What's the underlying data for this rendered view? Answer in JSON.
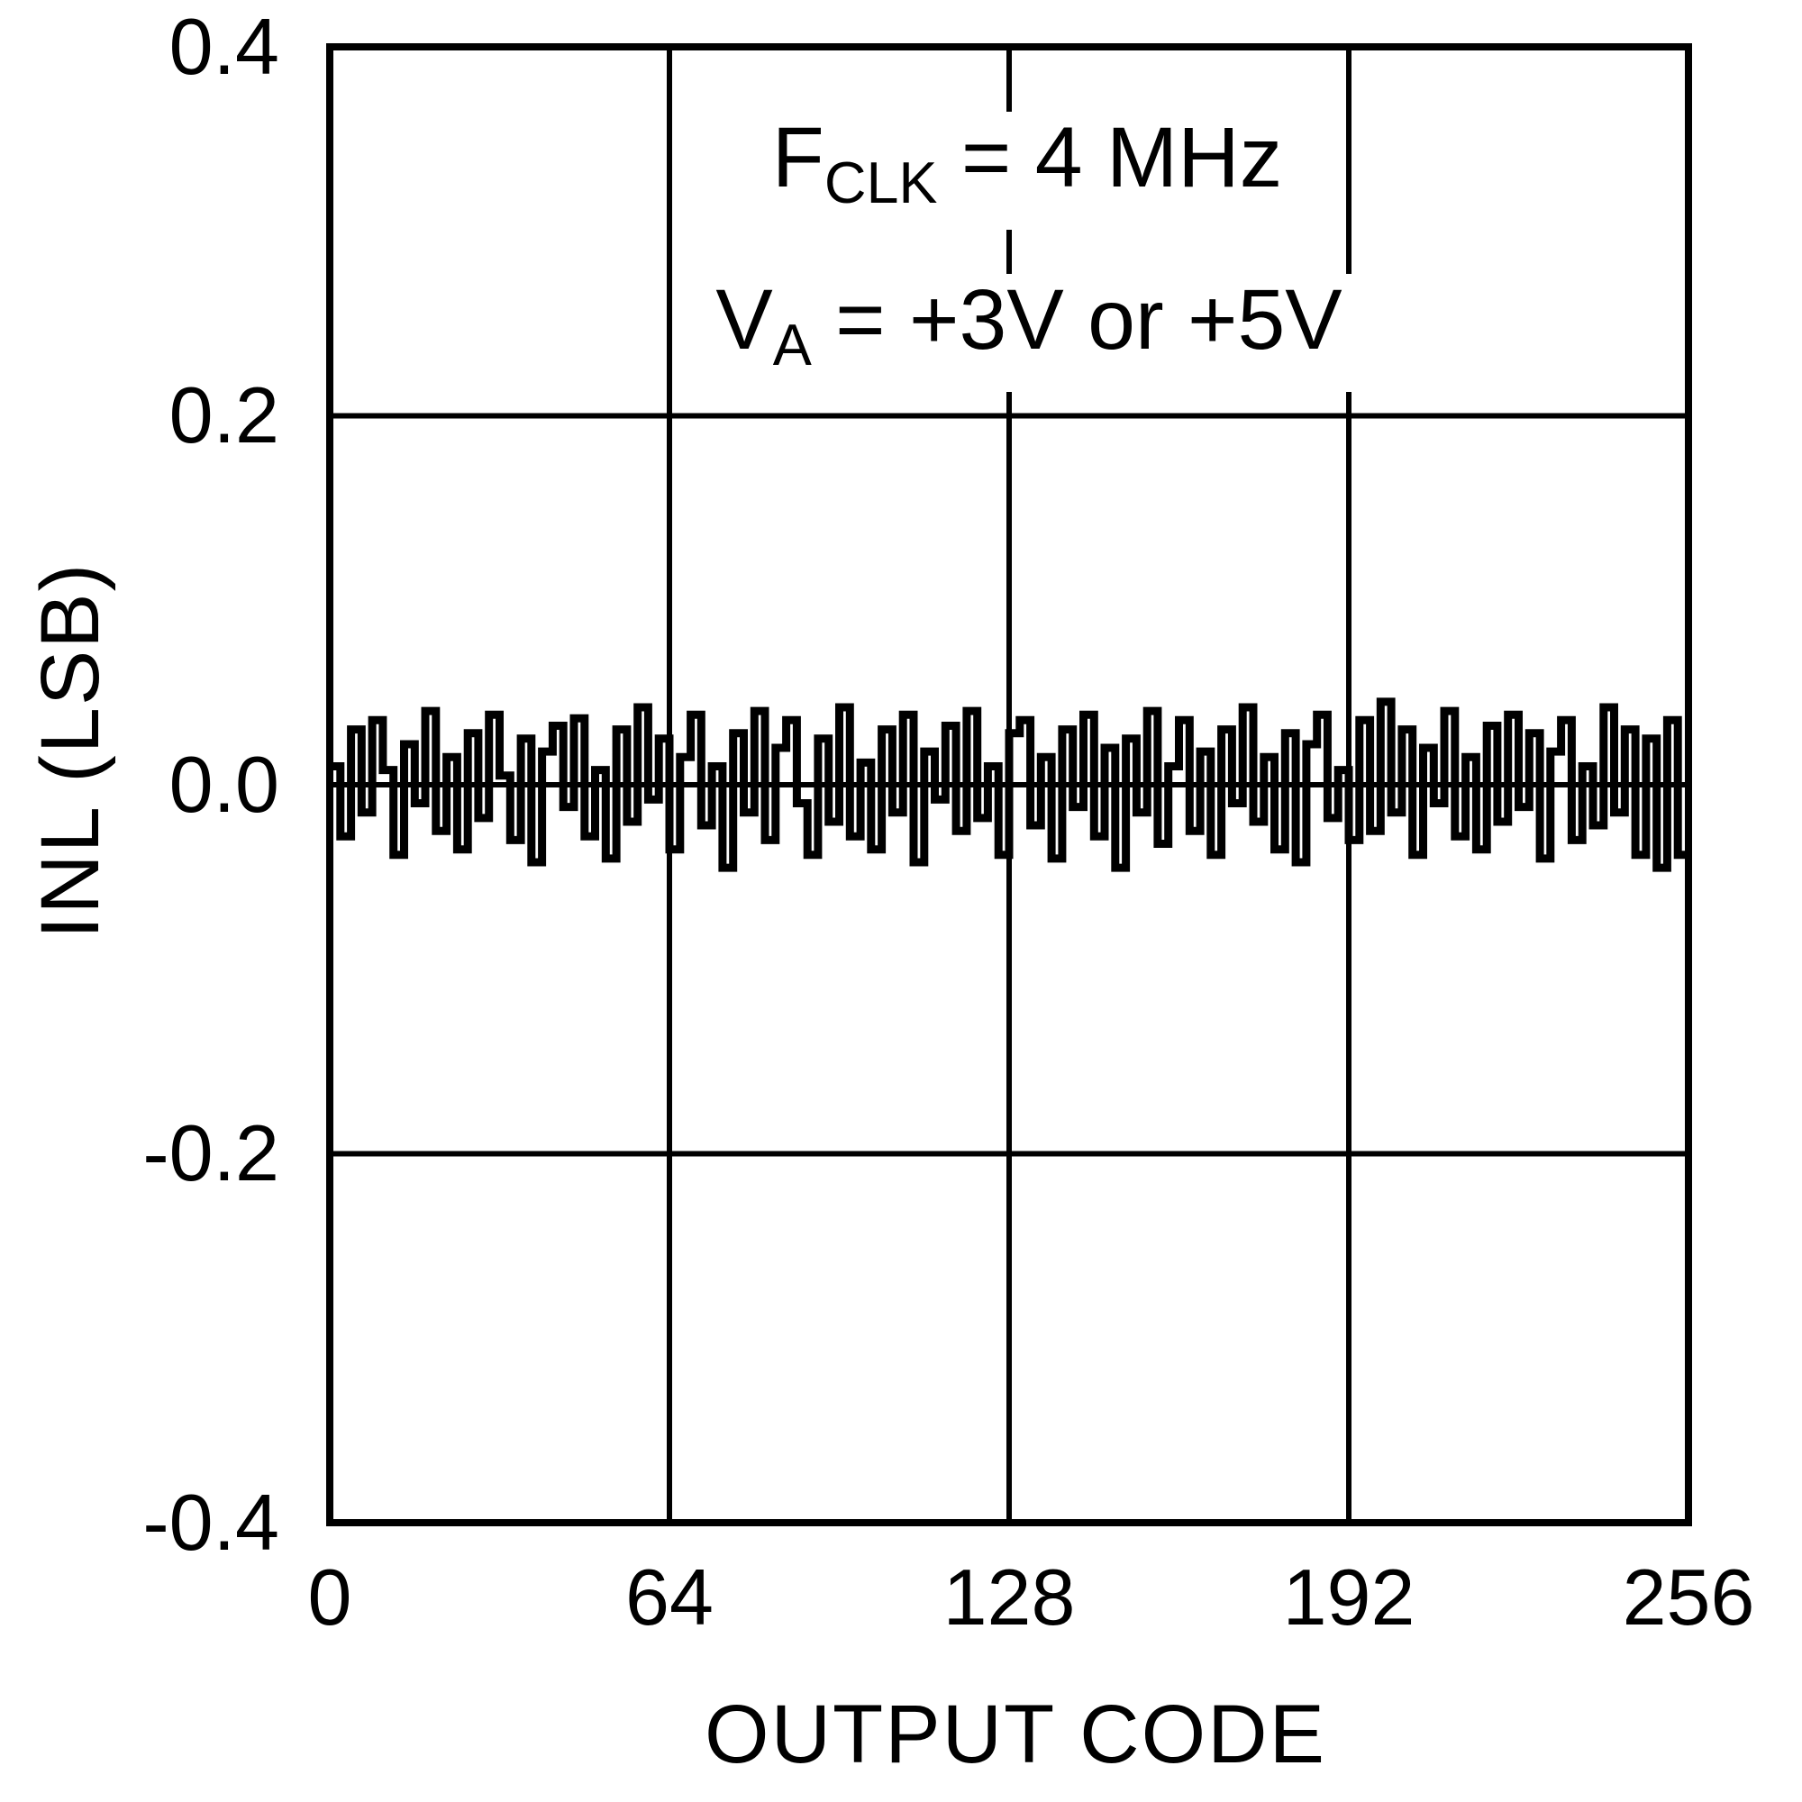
{
  "colors": {
    "ink": "#000000",
    "background": "#ffffff"
  },
  "axes": {
    "x_label": "OUTPUT CODE",
    "y_label": "INL (LSB)",
    "x_tick_labels": [
      "0",
      "64",
      "128",
      "192",
      "256"
    ],
    "y_tick_labels": [
      "0.4",
      "0.2",
      "0.0",
      "-0.2",
      "-0.4"
    ]
  },
  "annotation": {
    "line1": {
      "base": "F",
      "sub": "CLK",
      "rest": " = 4 MHz"
    },
    "line2": {
      "base": "V",
      "sub": "A",
      "rest": " = +3V or +5V"
    }
  },
  "chart_data": {
    "type": "line",
    "style": "steps",
    "title": "",
    "xlabel": "OUTPUT CODE",
    "ylabel": "INL (LSB)",
    "xlim": [
      0,
      256
    ],
    "ylim": [
      -0.4,
      0.4
    ],
    "x_ticks": [
      0,
      64,
      128,
      192,
      256
    ],
    "y_ticks": [
      0.4,
      0.2,
      0.0,
      -0.2,
      -0.4
    ],
    "grid": true,
    "legend": "none",
    "annotations": [
      "FCLK = 4 MHz",
      "VA = +3V or +5V"
    ],
    "x_step_codes": 2,
    "values": [
      0.01,
      -0.028,
      0.03,
      -0.015,
      0.035,
      0.008,
      -0.038,
      0.022,
      -0.01,
      0.04,
      -0.025,
      0.015,
      -0.035,
      0.028,
      -0.018,
      0.038,
      0.005,
      -0.03,
      0.025,
      -0.042,
      0.018,
      0.032,
      -0.012,
      0.036,
      -0.028,
      0.008,
      -0.04,
      0.03,
      -0.02,
      0.042,
      -0.008,
      0.025,
      -0.035,
      0.015,
      0.038,
      -0.022,
      0.01,
      -0.045,
      0.028,
      -0.015,
      0.04,
      -0.03,
      0.02,
      0.035,
      -0.01,
      -0.038,
      0.025,
      -0.02,
      0.042,
      -0.028,
      0.012,
      -0.035,
      0.03,
      -0.015,
      0.038,
      -0.042,
      0.018,
      -0.008,
      0.032,
      -0.025,
      0.04,
      -0.018,
      0.01,
      -0.038,
      0.028,
      0.035,
      -0.022,
      0.015,
      -0.04,
      0.03,
      -0.012,
      0.038,
      -0.028,
      0.02,
      -0.045,
      0.025,
      -0.015,
      0.04,
      -0.032,
      0.01,
      0.035,
      -0.025,
      0.018,
      -0.038,
      0.03,
      -0.01,
      0.042,
      -0.02,
      0.015,
      -0.035,
      0.028,
      -0.042,
      0.022,
      0.038,
      -0.018,
      0.008,
      -0.03,
      0.035,
      -0.025,
      0.045,
      -0.015,
      0.03,
      -0.038,
      0.02,
      -0.01,
      0.04,
      -0.028,
      0.015,
      -0.035,
      0.032,
      -0.02,
      0.038,
      -0.012,
      0.028,
      -0.04,
      0.018,
      0.035,
      -0.03,
      0.01,
      -0.022,
      0.042,
      -0.015,
      0.03,
      -0.038,
      0.025,
      -0.045,
      0.035,
      -0.038
    ]
  }
}
